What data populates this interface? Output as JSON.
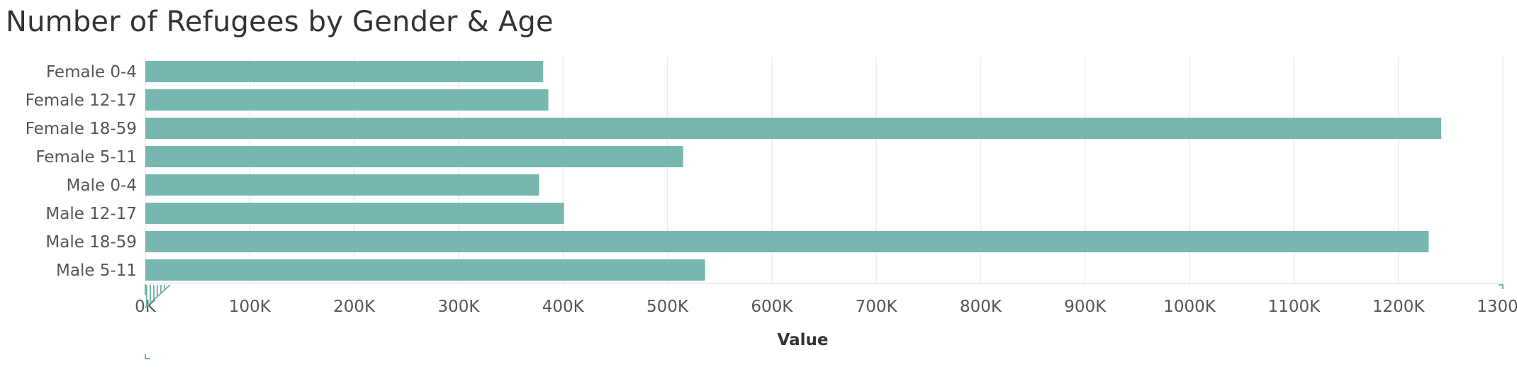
{
  "chart_data": {
    "type": "bar",
    "orientation": "horizontal",
    "title": "Number of Refugees by Gender & Age",
    "xlabel": "Value",
    "ylabel": "",
    "categories": [
      "Female 0-4",
      "Female 12-17",
      "Female 18-59",
      "Female 5-11",
      "Male 0-4",
      "Male 12-17",
      "Male 18-59",
      "Male 5-11"
    ],
    "values": [
      381000,
      386000,
      1241000,
      515000,
      377000,
      401000,
      1229000,
      536000
    ],
    "xlim": [
      0,
      1300000
    ],
    "ticks": [
      0,
      100000,
      200000,
      300000,
      400000,
      500000,
      600000,
      700000,
      800000,
      900000,
      1000000,
      1100000,
      1200000,
      1300000
    ],
    "tick_labels": [
      "0K",
      "100K",
      "200K",
      "300K",
      "400K",
      "500K",
      "600K",
      "700K",
      "800K",
      "900K",
      "1000K",
      "1100K",
      "1200K",
      "1300K"
    ],
    "bar_color": "#76b7b0",
    "grid": true
  }
}
